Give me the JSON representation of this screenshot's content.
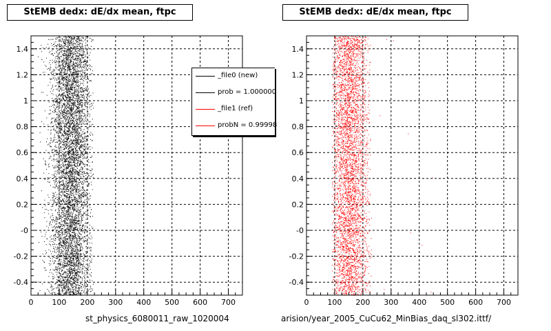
{
  "panels": [
    {
      "title": "StEMB dedx: dE/dx mean, ftpc",
      "xlabel": "st_physics_6080011_raw_1020004",
      "color": "#000000"
    },
    {
      "title": "StEMB dedx: dE/dx mean, ftpc",
      "xlabel": "arision/year_2005_CuCu62_MinBias_daq_sl302.ittf/",
      "color": "#ff0000"
    }
  ],
  "legend": {
    "entries": [
      {
        "label": "_file0 (new)",
        "color": "#000000"
      },
      {
        "label": "prob = 1.000000",
        "color": "#000000"
      },
      {
        "label": "_file1 (ref)",
        "color": "#ff0000"
      },
      {
        "label": "probN = 0.99998",
        "color": "#ff0000"
      }
    ]
  },
  "footer_note": "",
  "chart_data": [
    {
      "type": "scatter",
      "title": "StEMB dedx: dE/dx mean, ftpc",
      "xlabel": "st_physics_6080011_raw_1020004",
      "ylabel": "",
      "xlim": [
        0,
        750
      ],
      "ylim": [
        -0.5,
        1.5
      ],
      "xticks": [
        0,
        100,
        200,
        300,
        400,
        500,
        600,
        700
      ],
      "yticks": [
        -0.4,
        -0.2,
        0,
        0.2,
        0.4,
        0.6,
        0.8,
        1,
        1.2,
        1.4
      ],
      "ytick_labels": [
        "-0.4",
        "-0.2",
        "-0",
        "0.2",
        "0.4",
        "0.6",
        "0.8",
        "1",
        "1.2",
        "1.4"
      ],
      "grid": true,
      "series": [
        {
          "name": "_file0 (new)",
          "color": "#000000",
          "density_center_x": 140,
          "density_sigma_x": 35,
          "x_range": [
            20,
            220
          ],
          "n_points": 6500
        }
      ]
    },
    {
      "type": "scatter",
      "title": "StEMB dedx: dE/dx mean, ftpc",
      "xlabel": "arision/year_2005_CuCu62_MinBias_daq_sl302.ittf/",
      "ylabel": "",
      "xlim": [
        0,
        750
      ],
      "ylim": [
        -0.5,
        1.5
      ],
      "xticks": [
        0,
        100,
        200,
        300,
        400,
        500,
        600,
        700
      ],
      "yticks": [
        -0.4,
        -0.2,
        0,
        0.2,
        0.4,
        0.6,
        0.8,
        1,
        1.2,
        1.4
      ],
      "ytick_labels": [
        "-0.4",
        "-0.2",
        "-0",
        "0.2",
        "0.4",
        "0.6",
        "0.8",
        "1",
        "1.2",
        "1.4"
      ],
      "grid": true,
      "series": [
        {
          "name": "_file1 (ref)",
          "color": "#ff0000",
          "density_center_x": 150,
          "density_sigma_x": 35,
          "x_range": [
            90,
            230
          ],
          "n_points": 4500
        }
      ]
    }
  ]
}
